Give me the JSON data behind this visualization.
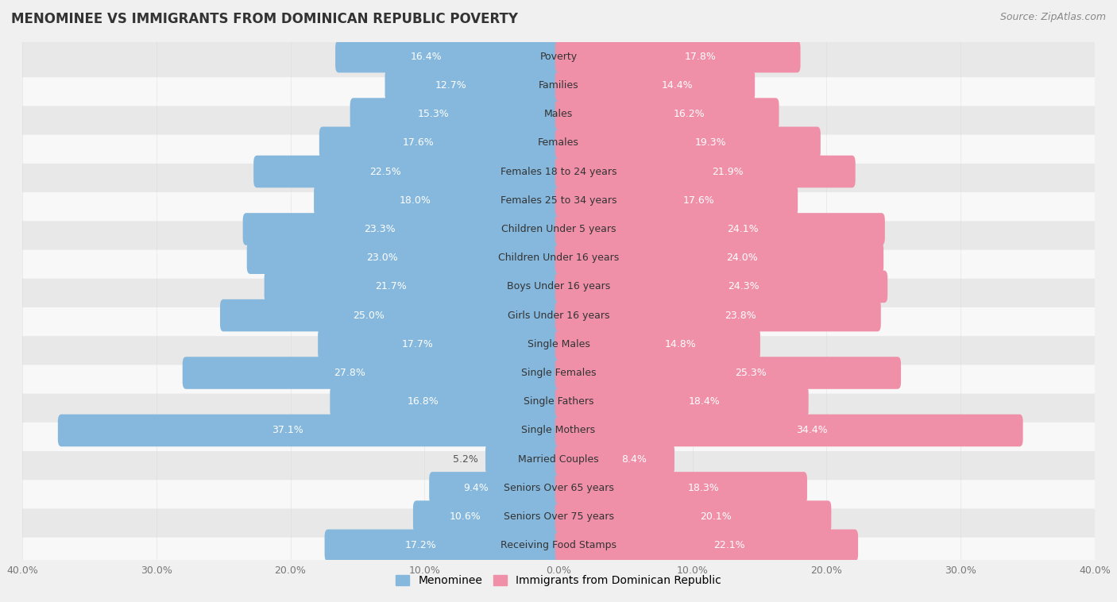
{
  "title": "MENOMINEE VS IMMIGRANTS FROM DOMINICAN REPUBLIC POVERTY",
  "source": "Source: ZipAtlas.com",
  "categories": [
    "Poverty",
    "Families",
    "Males",
    "Females",
    "Females 18 to 24 years",
    "Females 25 to 34 years",
    "Children Under 5 years",
    "Children Under 16 years",
    "Boys Under 16 years",
    "Girls Under 16 years",
    "Single Males",
    "Single Females",
    "Single Fathers",
    "Single Mothers",
    "Married Couples",
    "Seniors Over 65 years",
    "Seniors Over 75 years",
    "Receiving Food Stamps"
  ],
  "menominee": [
    16.4,
    12.7,
    15.3,
    17.6,
    22.5,
    18.0,
    23.3,
    23.0,
    21.7,
    25.0,
    17.7,
    27.8,
    16.8,
    37.1,
    5.2,
    9.4,
    10.6,
    17.2
  ],
  "dominican": [
    17.8,
    14.4,
    16.2,
    19.3,
    21.9,
    17.6,
    24.1,
    24.0,
    24.3,
    23.8,
    14.8,
    25.3,
    18.4,
    34.4,
    8.4,
    18.3,
    20.1,
    22.1
  ],
  "menominee_color": "#85b8dc",
  "dominican_color": "#f090a8",
  "background_color": "#f0f0f0",
  "row_color_light": "#f8f8f8",
  "row_color_dark": "#e8e8e8",
  "xlim": 40.0,
  "legend_menominee": "Menominee",
  "legend_dominican": "Immigrants from Dominican Republic",
  "value_fontsize": 9,
  "category_fontsize": 9,
  "title_fontsize": 12,
  "source_fontsize": 9
}
